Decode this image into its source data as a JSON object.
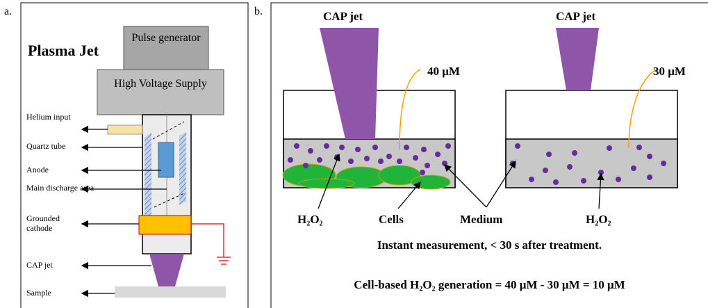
{
  "panel_a": {
    "label": "a.",
    "title": "Plasma Jet",
    "pulse_generator": "Pulse generator",
    "hv_supply": "High Voltage Supply",
    "labels": [
      "Helium input",
      "Quartz tube",
      "Anode",
      "Main discharge area",
      "Grounded cathode",
      "CAP jet",
      "Sample"
    ]
  },
  "panel_b": {
    "label": "b.",
    "left_jet": "CAP jet",
    "right_jet": "CAP jet",
    "left_conc": "40 μM",
    "right_conc": "30 μM",
    "left_h2o2": "H₂O₂",
    "cells": "Cells",
    "medium": "Medium",
    "right_h2o2": "H₂O₂",
    "caption": "Instant measurement, < 30 s after treatment.",
    "equation": "Cell-based H₂O₂ generation = 40 μM - 30 μM = 10 μM"
  }
}
